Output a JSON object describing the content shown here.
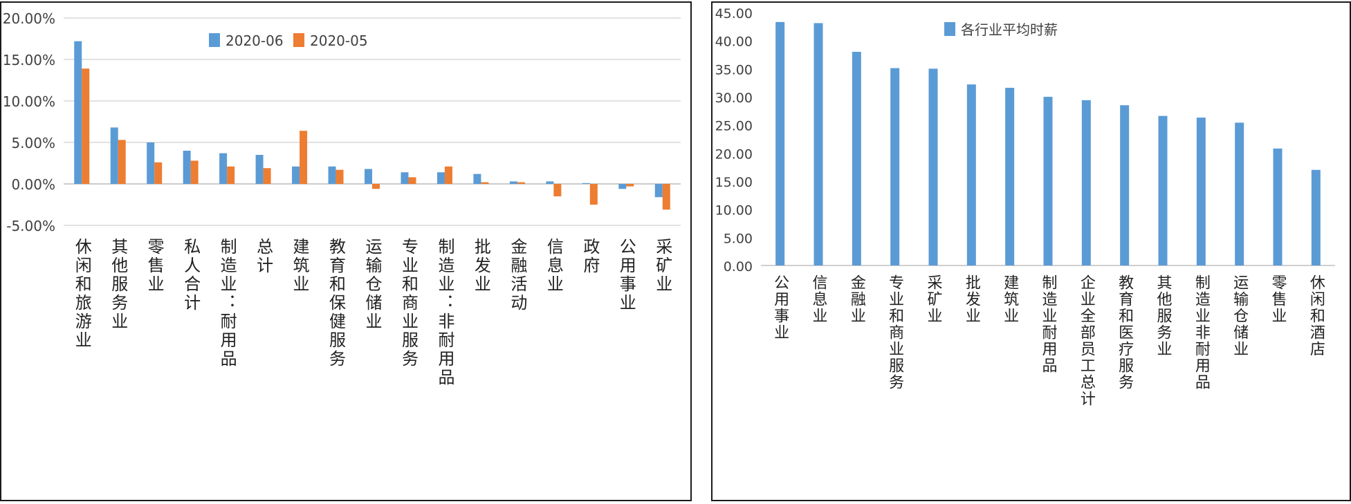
{
  "chart_data": [
    {
      "type": "bar",
      "title": "",
      "xlabel": "",
      "ylabel": "",
      "ylim": [
        -0.05,
        0.2
      ],
      "yticks": [
        "20.00%",
        "15.00%",
        "10.00%",
        "5.00%",
        "0.00%",
        "-5.00%"
      ],
      "ytick_values": [
        0.2,
        0.15,
        0.1,
        0.05,
        0.0,
        -0.05
      ],
      "grid": true,
      "legend": "top-center",
      "categories": [
        "休闲和旅游业",
        "其他服务业",
        "零售业",
        "私人合计",
        "制造业：耐用品",
        "总计",
        "建筑业",
        "教育和保健服务",
        "运输仓储业",
        "专业和商业服务",
        "制造业：非耐用品",
        "批发业",
        "金融活动",
        "信息业",
        "政府",
        "公用事业",
        "采矿业"
      ],
      "series": [
        {
          "name": "2020-06",
          "color": "#5B9BD5",
          "values": [
            0.172,
            0.068,
            0.05,
            0.04,
            0.037,
            0.035,
            0.021,
            0.021,
            0.018,
            0.014,
            0.014,
            0.012,
            0.003,
            0.003,
            0.001,
            -0.006,
            -0.016
          ]
        },
        {
          "name": "2020-05",
          "color": "#ED7D31",
          "values": [
            0.139,
            0.053,
            0.026,
            0.028,
            0.021,
            0.019,
            0.064,
            0.017,
            -0.006,
            0.008,
            0.021,
            0.002,
            0.002,
            -0.015,
            -0.025,
            -0.003,
            -0.031
          ]
        }
      ]
    },
    {
      "type": "bar",
      "title": "",
      "xlabel": "",
      "ylabel": "",
      "ylim": [
        0,
        45
      ],
      "yticks": [
        "45.00",
        "40.00",
        "35.00",
        "30.00",
        "25.00",
        "20.00",
        "15.00",
        "10.00",
        "5.00",
        "0.00"
      ],
      "ytick_values": [
        45,
        40,
        35,
        30,
        25,
        20,
        15,
        10,
        5,
        0
      ],
      "grid": false,
      "legend": "top-center",
      "categories": [
        "公用事业",
        "信息业",
        "金融业",
        "专业和商业服务",
        "采矿业",
        "批发业",
        "建筑业",
        "制造业耐用品",
        "企业全部员工总计",
        "教育和医疗服务",
        "其他服务业",
        "制造业非耐用品",
        "运输仓储业",
        "零售业",
        "休闲和酒店"
      ],
      "series": [
        {
          "name": "各行业平均时薪",
          "color": "#5B9BD5",
          "values": [
            43.3,
            43.1,
            38.0,
            35.1,
            35.0,
            32.2,
            31.6,
            30.0,
            29.4,
            28.5,
            26.6,
            26.3,
            25.4,
            20.8,
            17.0
          ]
        }
      ]
    }
  ]
}
